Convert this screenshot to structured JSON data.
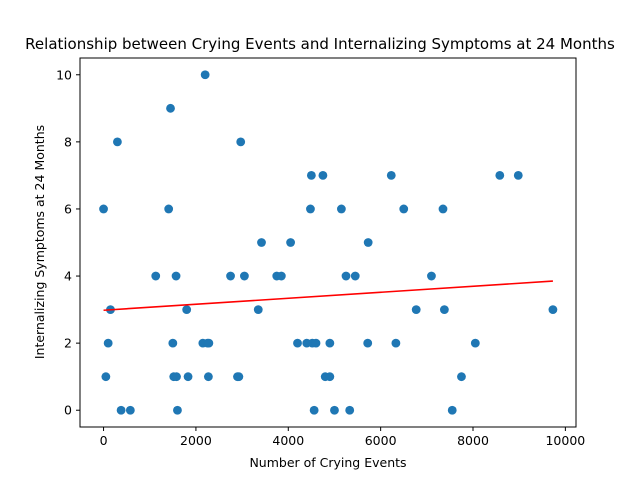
{
  "chart_data": {
    "type": "scatter",
    "title": "Relationship between Crying Events and Internalizing Symptoms at 24 Months",
    "xlabel": "Number of Crying Events",
    "ylabel": "Internalizing Symptoms at 24 Months",
    "xlim": [
      -510,
      10230
    ],
    "ylim": [
      -0.5,
      10.5
    ],
    "xticks": [
      0,
      2000,
      4000,
      6000,
      8000,
      10000
    ],
    "yticks": [
      0,
      2,
      4,
      6,
      8,
      10
    ],
    "grid": false,
    "marker_color": "#1f77b4",
    "trend_color": "#ff0000",
    "points": [
      {
        "x": 0,
        "y": 6
      },
      {
        "x": 50,
        "y": 1
      },
      {
        "x": 100,
        "y": 2
      },
      {
        "x": 150,
        "y": 3
      },
      {
        "x": 300,
        "y": 8
      },
      {
        "x": 380,
        "y": 0
      },
      {
        "x": 580,
        "y": 0
      },
      {
        "x": 1130,
        "y": 4
      },
      {
        "x": 1410,
        "y": 6
      },
      {
        "x": 1450,
        "y": 9
      },
      {
        "x": 1500,
        "y": 2
      },
      {
        "x": 1520,
        "y": 1
      },
      {
        "x": 1580,
        "y": 1
      },
      {
        "x": 1570,
        "y": 4
      },
      {
        "x": 1600,
        "y": 0
      },
      {
        "x": 1800,
        "y": 3
      },
      {
        "x": 1830,
        "y": 1
      },
      {
        "x": 2150,
        "y": 2
      },
      {
        "x": 2200,
        "y": 10
      },
      {
        "x": 2250,
        "y": 2
      },
      {
        "x": 2280,
        "y": 2
      },
      {
        "x": 2270,
        "y": 1
      },
      {
        "x": 2750,
        "y": 4
      },
      {
        "x": 2900,
        "y": 1
      },
      {
        "x": 2930,
        "y": 1
      },
      {
        "x": 2970,
        "y": 8
      },
      {
        "x": 3050,
        "y": 4
      },
      {
        "x": 3350,
        "y": 3
      },
      {
        "x": 3420,
        "y": 5
      },
      {
        "x": 3750,
        "y": 4
      },
      {
        "x": 3850,
        "y": 4
      },
      {
        "x": 4050,
        "y": 5
      },
      {
        "x": 4200,
        "y": 2
      },
      {
        "x": 4400,
        "y": 2
      },
      {
        "x": 4480,
        "y": 6
      },
      {
        "x": 4500,
        "y": 7
      },
      {
        "x": 4520,
        "y": 2
      },
      {
        "x": 4560,
        "y": 0
      },
      {
        "x": 4600,
        "y": 2
      },
      {
        "x": 4750,
        "y": 7
      },
      {
        "x": 4800,
        "y": 1
      },
      {
        "x": 4900,
        "y": 1
      },
      {
        "x": 4900,
        "y": 2
      },
      {
        "x": 5000,
        "y": 0
      },
      {
        "x": 5150,
        "y": 6
      },
      {
        "x": 5250,
        "y": 4
      },
      {
        "x": 5330,
        "y": 0
      },
      {
        "x": 5450,
        "y": 4
      },
      {
        "x": 5720,
        "y": 2
      },
      {
        "x": 5730,
        "y": 5
      },
      {
        "x": 6230,
        "y": 7
      },
      {
        "x": 6330,
        "y": 2
      },
      {
        "x": 6500,
        "y": 6
      },
      {
        "x": 6770,
        "y": 3
      },
      {
        "x": 7100,
        "y": 4
      },
      {
        "x": 7350,
        "y": 6
      },
      {
        "x": 7380,
        "y": 3
      },
      {
        "x": 7550,
        "y": 0
      },
      {
        "x": 7750,
        "y": 1
      },
      {
        "x": 8050,
        "y": 2
      },
      {
        "x": 8580,
        "y": 7
      },
      {
        "x": 8980,
        "y": 7
      },
      {
        "x": 9730,
        "y": 3
      }
    ],
    "trend_line": {
      "x": [
        0,
        9730
      ],
      "y": [
        2.98,
        3.85
      ]
    }
  }
}
